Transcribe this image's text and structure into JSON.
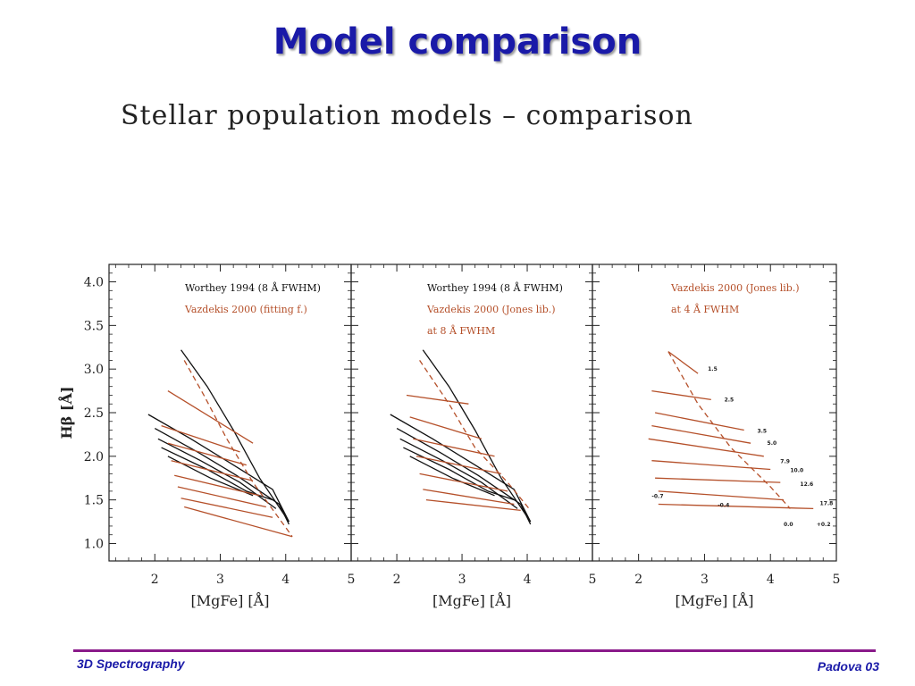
{
  "slide": {
    "title": "Model comparison",
    "subtitle": "Stellar population models – comparison",
    "footer_left": "3D Spectrography",
    "footer_right": "Padova 03"
  },
  "colors": {
    "worthey": "#111111",
    "vazdekis": "#b5502a",
    "title": "#1a1aa8",
    "footer_rule": "#8a1a8a"
  },
  "chart_data": [
    {
      "type": "line",
      "xlabel": "[MgFe] [Å]",
      "ylabel": "Hβ [Å]",
      "xlim": [
        1.3,
        5
      ],
      "ylim": [
        0.8,
        4.2
      ],
      "xticks": [
        2,
        3,
        4,
        5
      ],
      "yticks": [
        1.0,
        1.5,
        2.0,
        2.5,
        3.0,
        3.5,
        4.0
      ],
      "legend": [
        "Worthey 1994 (8 Å FWHM)",
        "Vazdekis 2000 (fitting f.)"
      ],
      "series": [
        {
          "name": "Worthey 1994 (8 Å FWHM)",
          "color": "black",
          "lines": [
            [
              [
                1.9,
                2.48
              ],
              [
                2.55,
                2.2
              ],
              [
                3.2,
                1.9
              ],
              [
                3.8,
                1.62
              ],
              [
                4.05,
                1.25
              ]
            ],
            [
              [
                2.0,
                2.32
              ],
              [
                2.65,
                2.05
              ],
              [
                3.25,
                1.78
              ],
              [
                3.9,
                1.45
              ],
              [
                4.05,
                1.22
              ]
            ],
            [
              [
                2.05,
                2.2
              ],
              [
                2.7,
                1.95
              ],
              [
                3.3,
                1.7
              ],
              [
                3.85,
                1.4
              ]
            ],
            [
              [
                2.1,
                2.1
              ],
              [
                2.8,
                1.85
              ],
              [
                3.4,
                1.6
              ],
              [
                3.8,
                1.5
              ]
            ],
            [
              [
                2.2,
                2.0
              ],
              [
                2.85,
                1.75
              ],
              [
                3.5,
                1.55
              ]
            ],
            [
              [
                2.4,
                3.22
              ],
              [
                2.8,
                2.8
              ],
              [
                3.2,
                2.3
              ],
              [
                3.6,
                1.75
              ],
              [
                4.05,
                1.25
              ]
            ]
          ]
        },
        {
          "name": "Vazdekis 2000 (fitting f.)",
          "color": "#b5502a",
          "lines": [
            [
              [
                2.2,
                2.75
              ],
              [
                3.5,
                2.15
              ]
            ],
            [
              [
                2.1,
                2.35
              ],
              [
                3.3,
                2.05
              ]
            ],
            [
              [
                2.2,
                2.15
              ],
              [
                3.4,
                1.9
              ]
            ],
            [
              [
                2.25,
                1.95
              ],
              [
                3.5,
                1.72
              ]
            ],
            [
              [
                2.3,
                1.78
              ],
              [
                3.6,
                1.55
              ]
            ],
            [
              [
                2.35,
                1.65
              ],
              [
                3.7,
                1.42
              ]
            ],
            [
              [
                2.4,
                1.52
              ],
              [
                3.8,
                1.3
              ]
            ],
            [
              [
                2.45,
                1.42
              ],
              [
                4.1,
                1.08
              ]
            ],
            [
              [
                2.45,
                3.1
              ],
              [
                2.75,
                2.7
              ],
              [
                3.1,
                2.2
              ],
              [
                3.5,
                1.7
              ],
              [
                4.1,
                1.08
              ]
            ]
          ]
        }
      ]
    },
    {
      "type": "line",
      "xlabel": "[MgFe] [Å]",
      "ylabel": "",
      "xlim": [
        1.3,
        5
      ],
      "ylim": [
        0.8,
        4.2
      ],
      "xticks": [
        2,
        3,
        4,
        5
      ],
      "legend": [
        "Worthey 1994 (8 Å FWHM)",
        "Vazdekis 2000 (Jones lib.)",
        "at 8 Å FWHM"
      ],
      "series": [
        {
          "name": "Worthey 1994 (8 Å FWHM)",
          "color": "black",
          "lines": [
            [
              [
                1.9,
                2.48
              ],
              [
                2.55,
                2.2
              ],
              [
                3.2,
                1.9
              ],
              [
                3.8,
                1.62
              ],
              [
                4.05,
                1.25
              ]
            ],
            [
              [
                2.0,
                2.32
              ],
              [
                2.65,
                2.05
              ],
              [
                3.25,
                1.78
              ],
              [
                3.9,
                1.45
              ],
              [
                4.05,
                1.22
              ]
            ],
            [
              [
                2.05,
                2.2
              ],
              [
                2.7,
                1.95
              ],
              [
                3.3,
                1.7
              ],
              [
                3.85,
                1.4
              ]
            ],
            [
              [
                2.1,
                2.1
              ],
              [
                2.8,
                1.85
              ],
              [
                3.4,
                1.6
              ],
              [
                3.8,
                1.5
              ]
            ],
            [
              [
                2.2,
                2.0
              ],
              [
                2.85,
                1.75
              ],
              [
                3.5,
                1.55
              ]
            ],
            [
              [
                2.4,
                3.22
              ],
              [
                2.8,
                2.8
              ],
              [
                3.2,
                2.3
              ],
              [
                3.6,
                1.75
              ],
              [
                4.05,
                1.25
              ]
            ]
          ]
        },
        {
          "name": "Vazdekis 2000 (Jones lib.)",
          "color": "#b5502a",
          "lines": [
            [
              [
                2.15,
                2.7
              ],
              [
                3.1,
                2.6
              ]
            ],
            [
              [
                2.2,
                2.45
              ],
              [
                3.3,
                2.2
              ]
            ],
            [
              [
                2.25,
                2.2
              ],
              [
                3.5,
                2.0
              ]
            ],
            [
              [
                2.3,
                2.0
              ],
              [
                3.6,
                1.8
              ]
            ],
            [
              [
                2.35,
                1.8
              ],
              [
                3.7,
                1.6
              ]
            ],
            [
              [
                2.4,
                1.62
              ],
              [
                3.8,
                1.45
              ]
            ],
            [
              [
                2.45,
                1.5
              ],
              [
                3.9,
                1.38
              ]
            ],
            [
              [
                2.35,
                3.1
              ],
              [
                2.8,
                2.6
              ],
              [
                3.2,
                2.1
              ],
              [
                3.7,
                1.7
              ],
              [
                4.05,
                1.38
              ]
            ]
          ]
        }
      ]
    },
    {
      "type": "line",
      "xlabel": "[MgFe] [Å]",
      "ylabel": "",
      "xlim": [
        1.3,
        5
      ],
      "ylim": [
        0.8,
        4.2
      ],
      "xticks": [
        2,
        3,
        4,
        5
      ],
      "legend": [
        "Vazdekis 2000 (Jones lib.)",
        "at 4 Å FWHM"
      ],
      "series": [
        {
          "name": "Vazdekis 2000 (Jones lib.)",
          "color": "#b5502a",
          "lines": [
            [
              [
                2.45,
                3.2
              ],
              [
                2.9,
                2.95
              ]
            ],
            [
              [
                2.2,
                2.75
              ],
              [
                3.1,
                2.65
              ]
            ],
            [
              [
                2.25,
                2.5
              ],
              [
                3.6,
                2.3
              ]
            ],
            [
              [
                2.2,
                2.35
              ],
              [
                3.7,
                2.15
              ]
            ],
            [
              [
                2.15,
                2.2
              ],
              [
                3.9,
                2.0
              ]
            ],
            [
              [
                2.2,
                1.95
              ],
              [
                4.0,
                1.85
              ]
            ],
            [
              [
                2.25,
                1.75
              ],
              [
                4.15,
                1.7
              ]
            ],
            [
              [
                2.3,
                1.6
              ],
              [
                4.2,
                1.5
              ]
            ],
            [
              [
                2.3,
                1.45
              ],
              [
                4.65,
                1.4
              ]
            ],
            [
              [
                2.45,
                3.2
              ],
              [
                2.9,
                2.6
              ],
              [
                3.4,
                2.1
              ],
              [
                4.0,
                1.65
              ],
              [
                4.3,
                1.4
              ]
            ]
          ]
        }
      ],
      "age_labels": [
        {
          "text": "1.5",
          "x": 3.05,
          "y": 2.98
        },
        {
          "text": "2.5",
          "x": 3.3,
          "y": 2.63
        },
        {
          "text": "3.5",
          "x": 3.8,
          "y": 2.27
        },
        {
          "text": "5.0",
          "x": 3.95,
          "y": 2.13
        },
        {
          "text": "7.9",
          "x": 4.15,
          "y": 1.92
        },
        {
          "text": "10.0",
          "x": 4.3,
          "y": 1.82
        },
        {
          "text": "12.6",
          "x": 4.45,
          "y": 1.66
        },
        {
          "text": "17.8",
          "x": 4.75,
          "y": 1.44
        }
      ],
      "metallicity_labels": [
        {
          "text": "-0.7",
          "x": 2.2,
          "y": 1.52
        },
        {
          "text": "-0.4",
          "x": 3.2,
          "y": 1.42
        },
        {
          "text": "0.0",
          "x": 4.2,
          "y": 1.2
        },
        {
          "text": "+0.2",
          "x": 4.7,
          "y": 1.2
        }
      ]
    }
  ]
}
